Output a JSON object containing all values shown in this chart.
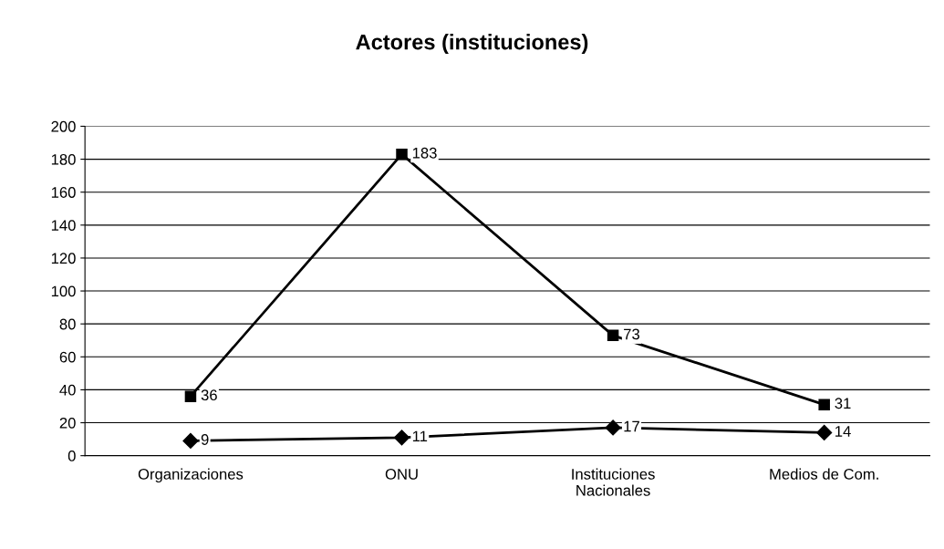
{
  "chart_data": {
    "type": "line",
    "title": "Actores (instituciones)",
    "categories": [
      "Organizaciones",
      "ONU",
      "Instituciones\nNacionales",
      "Medios de Com."
    ],
    "series": [
      {
        "color": "#000000",
        "values": [
          36,
          183,
          73,
          31
        ],
        "marker": "square"
      },
      {
        "color": "#000000",
        "values": [
          9,
          11,
          17,
          14
        ],
        "marker": "diamond"
      }
    ],
    "ylim": [
      0,
      200
    ],
    "yticks": [
      0,
      20,
      40,
      60,
      80,
      100,
      120,
      140,
      160,
      180,
      200
    ],
    "grid": "y",
    "data_labels": true,
    "line_style": "solid"
  }
}
